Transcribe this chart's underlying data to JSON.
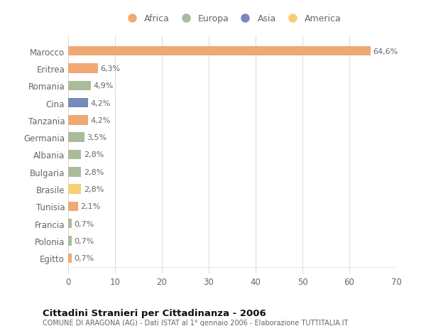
{
  "categories": [
    "Marocco",
    "Eritrea",
    "Romania",
    "Cina",
    "Tanzania",
    "Germania",
    "Albania",
    "Bulgaria",
    "Brasile",
    "Tunisia",
    "Francia",
    "Polonia",
    "Egitto"
  ],
  "values": [
    64.6,
    6.3,
    4.9,
    4.2,
    4.2,
    3.5,
    2.8,
    2.8,
    2.8,
    2.1,
    0.7,
    0.7,
    0.7
  ],
  "labels": [
    "64,6%",
    "6,3%",
    "4,9%",
    "4,2%",
    "4,2%",
    "3,5%",
    "2,8%",
    "2,8%",
    "2,8%",
    "2,1%",
    "0,7%",
    "0,7%",
    "0,7%"
  ],
  "continents": [
    "Africa",
    "Africa",
    "Europa",
    "Asia",
    "Africa",
    "Europa",
    "Europa",
    "Europa",
    "America",
    "Africa",
    "Europa",
    "Europa",
    "Africa"
  ],
  "colors": {
    "Africa": "#F0A875",
    "Europa": "#AABB99",
    "Asia": "#7788BB",
    "America": "#F5D070"
  },
  "xlim": [
    0,
    70
  ],
  "xticks": [
    0,
    10,
    20,
    30,
    40,
    50,
    60,
    70
  ],
  "title": "Cittadini Stranieri per Cittadinanza - 2006",
  "subtitle": "COMUNE DI ARAGONA (AG) - Dati ISTAT al 1° gennaio 2006 - Elaborazione TUTTITALIA.IT",
  "background_color": "#ffffff",
  "plot_bg_color": "#ffffff",
  "grid_color": "#dddddd",
  "text_color": "#666666",
  "title_color": "#111111",
  "subtitle_color": "#666666",
  "bar_height": 0.55,
  "label_fontsize": 8,
  "ytick_fontsize": 8.5,
  "xtick_fontsize": 8.5
}
